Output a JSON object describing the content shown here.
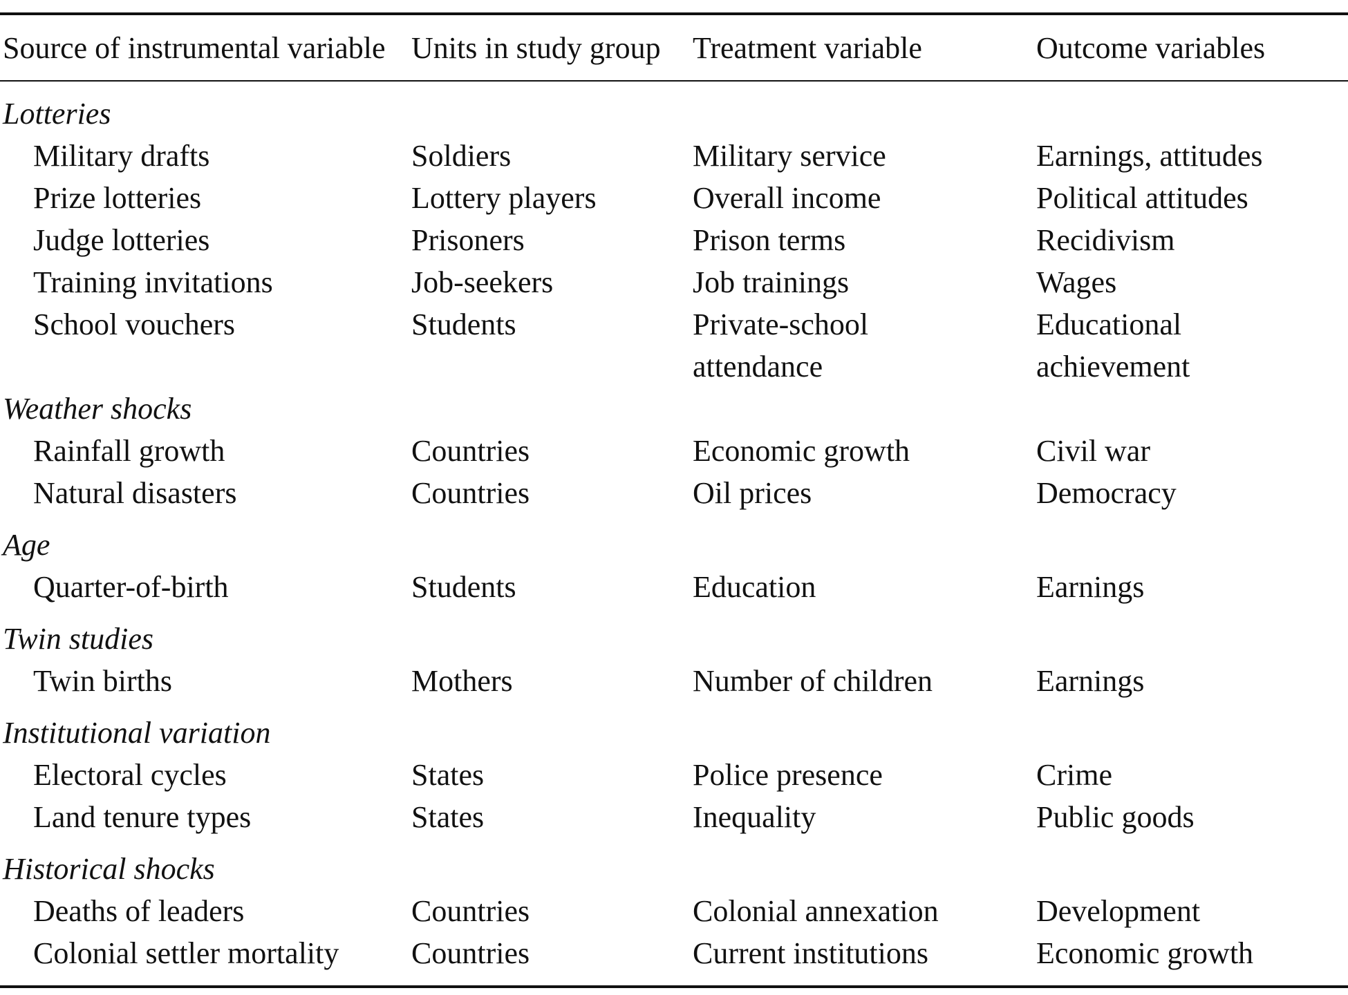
{
  "headers": {
    "source": "Source of instrumental variable",
    "units": "Units in study group",
    "treatment": "Treatment variable",
    "outcome": "Outcome variables"
  },
  "groups": [
    {
      "title": "Lotteries",
      "rows": [
        {
          "source": "Military drafts",
          "units": "Soldiers",
          "treatment": "Military service",
          "outcome": "Earnings, attitudes"
        },
        {
          "source": "Prize lotteries",
          "units": "Lottery players",
          "treatment": "Overall income",
          "outcome": "Political attitudes"
        },
        {
          "source": "Judge lotteries",
          "units": "Prisoners",
          "treatment": "Prison terms",
          "outcome": "Recidivism"
        },
        {
          "source": "Training invitations",
          "units": "Job-seekers",
          "treatment": "Job trainings",
          "outcome": "Wages"
        },
        {
          "source": "School vouchers",
          "units": "Students",
          "treatment_line1": "Private-school",
          "treatment_line2": "attendance",
          "outcome_line1": "Educational",
          "outcome_line2": "achievement"
        }
      ]
    },
    {
      "title": "Weather shocks",
      "rows": [
        {
          "source": "Rainfall growth",
          "units": "Countries",
          "treatment": "Economic growth",
          "outcome": "Civil war"
        },
        {
          "source": "Natural disasters",
          "units": "Countries",
          "treatment": "Oil prices",
          "outcome": "Democracy"
        }
      ]
    },
    {
      "title": "Age",
      "rows": [
        {
          "source": "Quarter-of-birth",
          "units": "Students",
          "treatment": "Education",
          "outcome": "Earnings"
        }
      ]
    },
    {
      "title": "Twin studies",
      "rows": [
        {
          "source": "Twin births",
          "units": "Mothers",
          "treatment": "Number of children",
          "outcome": "Earnings"
        }
      ]
    },
    {
      "title": "Institutional variation",
      "rows": [
        {
          "source": "Electoral cycles",
          "units": "States",
          "treatment": "Police presence",
          "outcome": "Crime"
        },
        {
          "source": "Land tenure types",
          "units": "States",
          "treatment": "Inequality",
          "outcome": "Public goods"
        }
      ]
    },
    {
      "title": "Historical shocks",
      "rows": [
        {
          "source": "Deaths of leaders",
          "units": "Countries",
          "treatment": "Colonial annexation",
          "outcome": "Development"
        },
        {
          "source": "Colonial settler mortality",
          "units": "Countries",
          "treatment": "Current institutions",
          "outcome": "Economic growth"
        }
      ]
    }
  ]
}
